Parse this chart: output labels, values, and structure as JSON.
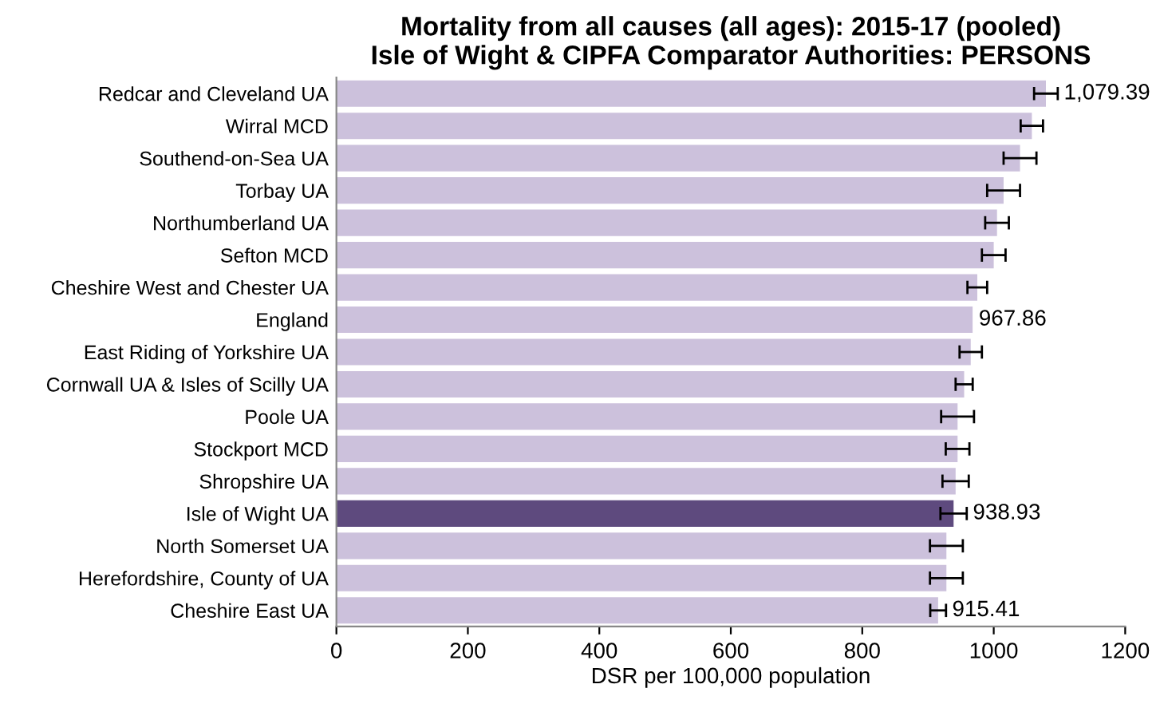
{
  "chart_data": {
    "type": "bar",
    "orientation": "horizontal",
    "title": "Mortality from all causes (all ages): 2015-17 (pooled)\nIsle of Wight & CIPFA Comparator Authorities: PERSONS",
    "xlabel": "DSR per 100,000 population",
    "categories": [
      "Redcar and Cleveland UA",
      "Wirral MCD",
      "Southend-on-Sea UA",
      "Torbay UA",
      "Northumberland UA",
      "Sefton MCD",
      "Cheshire West and Chester UA",
      "England",
      "East Riding of Yorkshire UA",
      "Cornwall UA & Isles of Scilly UA",
      "Poole UA",
      "Stockport MCD",
      "Shropshire UA",
      "Isle of Wight UA",
      "North Somerset UA",
      "Herefordshire, County of UA",
      "Cheshire East UA"
    ],
    "values": [
      1079.39,
      1058,
      1040,
      1015,
      1005,
      1000,
      975,
      967.86,
      965,
      955,
      945,
      945,
      942,
      938.93,
      928,
      928,
      915.41
    ],
    "colors": [
      "#ccc1dc",
      "#ccc1dc",
      "#ccc1dc",
      "#ccc1dc",
      "#ccc1dc",
      "#ccc1dc",
      "#ccc1dc",
      "#ccc1dc",
      "#ccc1dc",
      "#ccc1dc",
      "#ccc1dc",
      "#ccc1dc",
      "#ccc1dc",
      "#5e4a7e",
      "#ccc1dc",
      "#ccc1dc",
      "#ccc1dc"
    ],
    "errors": [
      18,
      17,
      25,
      25,
      18,
      18,
      15,
      null,
      17,
      13,
      25,
      18,
      20,
      20,
      25,
      25,
      12
    ],
    "value_labels": [
      "1,079.39",
      null,
      null,
      null,
      null,
      null,
      null,
      "967.86",
      null,
      null,
      null,
      null,
      null,
      "938.93",
      null,
      null,
      "915.41"
    ],
    "xlim": [
      0,
      1200
    ],
    "xticks": [
      0,
      200,
      400,
      600,
      800,
      1000,
      1200
    ],
    "grid": false
  }
}
